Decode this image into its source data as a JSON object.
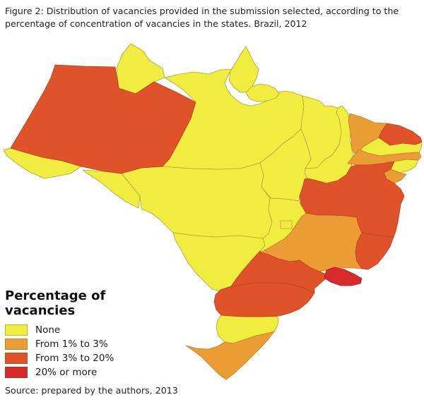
{
  "figure": {
    "caption_line1": "Figure 2: Distribution of vacancies provided in the submission selected, according to the",
    "caption_line2": "percentage of concentration of vacancies in the states. Brazil, 2012",
    "source": "Source: prepared by the authors, 2013"
  },
  "legend": {
    "title": "Percentage of vacancies",
    "items": [
      {
        "label": "None",
        "color": "#F0EC40"
      },
      {
        "label": "From 1% to 3%",
        "color": "#EA9C35"
      },
      {
        "label": "From 3% to 20%",
        "color": "#E0522A"
      },
      {
        "label": "20% or more",
        "color": "#D8292B"
      }
    ]
  },
  "categories": {
    "none": {
      "label": "None",
      "fill": "#F0EC40",
      "stroke": "#A8A832"
    },
    "low": {
      "label": "From 1% to 3%",
      "fill": "#EA9C35",
      "stroke": "#C57F22"
    },
    "mid": {
      "label": "From 3% to 20%",
      "fill": "#E0522A",
      "stroke": "#B5431C"
    },
    "high": {
      "label": "20% or more",
      "fill": "#D8292B",
      "stroke": "#A81F1C"
    }
  },
  "map": {
    "country": "Brazil",
    "year": "2012",
    "states": [
      {
        "id": "PA",
        "name": "Para",
        "category": "none"
      },
      {
        "id": "AP",
        "name": "Amapa",
        "category": "none"
      },
      {
        "id": "MJ",
        "name": "Ilha de Marajo (PA)",
        "category": "none"
      },
      {
        "id": "RR",
        "name": "Roraima",
        "category": "none"
      },
      {
        "id": "AC",
        "name": "Acre",
        "category": "none"
      },
      {
        "id": "RO",
        "name": "Rondonia",
        "category": "none"
      },
      {
        "id": "MT",
        "name": "Mato Grosso",
        "category": "none"
      },
      {
        "id": "TO",
        "name": "Tocantins",
        "category": "none"
      },
      {
        "id": "MA",
        "name": "Maranhao",
        "category": "none"
      },
      {
        "id": "PI",
        "name": "Piaui",
        "category": "none"
      },
      {
        "id": "PB",
        "name": "Paraiba",
        "category": "none"
      },
      {
        "id": "AL",
        "name": "Alagoas",
        "category": "none"
      },
      {
        "id": "GO",
        "name": "Goias",
        "category": "none"
      },
      {
        "id": "DF",
        "name": "Distrito Federal",
        "category": "none"
      },
      {
        "id": "MS",
        "name": "Mato Grosso do Sul",
        "category": "none"
      },
      {
        "id": "SC",
        "name": "Santa Catarina",
        "category": "none"
      },
      {
        "id": "CE",
        "name": "Ceara",
        "category": "low"
      },
      {
        "id": "PE",
        "name": "Pernambuco",
        "category": "low"
      },
      {
        "id": "SE",
        "name": "Sergipe",
        "category": "low"
      },
      {
        "id": "MG",
        "name": "Minas Gerais",
        "category": "low"
      },
      {
        "id": "RS",
        "name": "Rio Grande do Sul",
        "category": "low"
      },
      {
        "id": "AM",
        "name": "Amazonas",
        "category": "mid"
      },
      {
        "id": "RN",
        "name": "Rio Grande do Norte",
        "category": "mid"
      },
      {
        "id": "BA",
        "name": "Bahia",
        "category": "mid"
      },
      {
        "id": "ES",
        "name": "Espirito Santo",
        "category": "mid"
      },
      {
        "id": "SP",
        "name": "Sao Paulo",
        "category": "mid"
      },
      {
        "id": "PR",
        "name": "Parana",
        "category": "mid"
      },
      {
        "id": "RJ",
        "name": "Rio de Janeiro",
        "category": "high"
      }
    ]
  }
}
